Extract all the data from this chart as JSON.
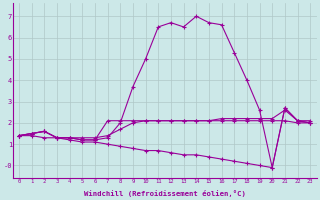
{
  "background_color": "#cce8e8",
  "line_color": "#990099",
  "xlim": [
    -0.5,
    23.5
  ],
  "ylim": [
    -0.6,
    7.6
  ],
  "xlabel": "Windchill (Refroidissement éolien,°C)",
  "xticks": [
    0,
    1,
    2,
    3,
    4,
    5,
    6,
    7,
    8,
    9,
    10,
    11,
    12,
    13,
    14,
    15,
    16,
    17,
    18,
    19,
    20,
    21,
    22,
    23
  ],
  "yticks": [
    0,
    1,
    2,
    3,
    4,
    5,
    6,
    7
  ],
  "ytick_labels": [
    "-0",
    "1",
    "2",
    "3",
    "4",
    "5",
    "6",
    "7"
  ],
  "grid_color": "#b0c8c8",
  "series": [
    {
      "x": [
        0,
        1,
        2,
        3,
        4,
        5,
        6,
        7,
        8,
        9,
        10,
        11,
        12,
        13,
        14,
        15,
        16,
        17,
        18,
        19,
        20,
        21,
        22,
        23
      ],
      "y": [
        1.4,
        1.5,
        1.6,
        1.3,
        1.3,
        1.3,
        1.3,
        1.4,
        1.7,
        2.0,
        2.1,
        2.1,
        2.1,
        2.1,
        2.1,
        2.1,
        2.2,
        2.2,
        2.2,
        2.2,
        2.2,
        2.6,
        2.1,
        2.1
      ]
    },
    {
      "x": [
        0,
        1,
        2,
        3,
        4,
        5,
        6,
        7,
        8,
        9,
        10,
        11,
        12,
        13,
        14,
        15,
        16,
        17,
        18,
        19,
        20,
        21,
        22,
        23
      ],
      "y": [
        1.4,
        1.5,
        1.6,
        1.3,
        1.3,
        1.2,
        1.2,
        1.3,
        2.0,
        3.7,
        5.0,
        6.5,
        6.7,
        6.5,
        7.0,
        6.7,
        6.6,
        5.3,
        4.0,
        2.6,
        -0.1,
        2.7,
        2.1,
        2.0
      ]
    },
    {
      "x": [
        0,
        1,
        2,
        3,
        4,
        5,
        6,
        7,
        8,
        9,
        10,
        11,
        12,
        13,
        14,
        15,
        16,
        17,
        18,
        19,
        20,
        21,
        22,
        23
      ],
      "y": [
        1.4,
        1.5,
        1.6,
        1.3,
        1.3,
        1.2,
        1.2,
        2.1,
        2.1,
        2.1,
        2.1,
        2.1,
        2.1,
        2.1,
        2.1,
        2.1,
        2.1,
        2.1,
        2.1,
        2.1,
        2.1,
        2.1,
        2.0,
        2.0
      ]
    },
    {
      "x": [
        0,
        1,
        2,
        3,
        4,
        5,
        6,
        7,
        8,
        9,
        10,
        11,
        12,
        13,
        14,
        15,
        16,
        17,
        18,
        19,
        20,
        21,
        22,
        23
      ],
      "y": [
        1.4,
        1.4,
        1.3,
        1.3,
        1.2,
        1.1,
        1.1,
        1.0,
        0.9,
        0.8,
        0.7,
        0.7,
        0.6,
        0.5,
        0.5,
        0.4,
        0.3,
        0.2,
        0.1,
        0.0,
        -0.1,
        2.7,
        2.1,
        2.0
      ]
    }
  ]
}
